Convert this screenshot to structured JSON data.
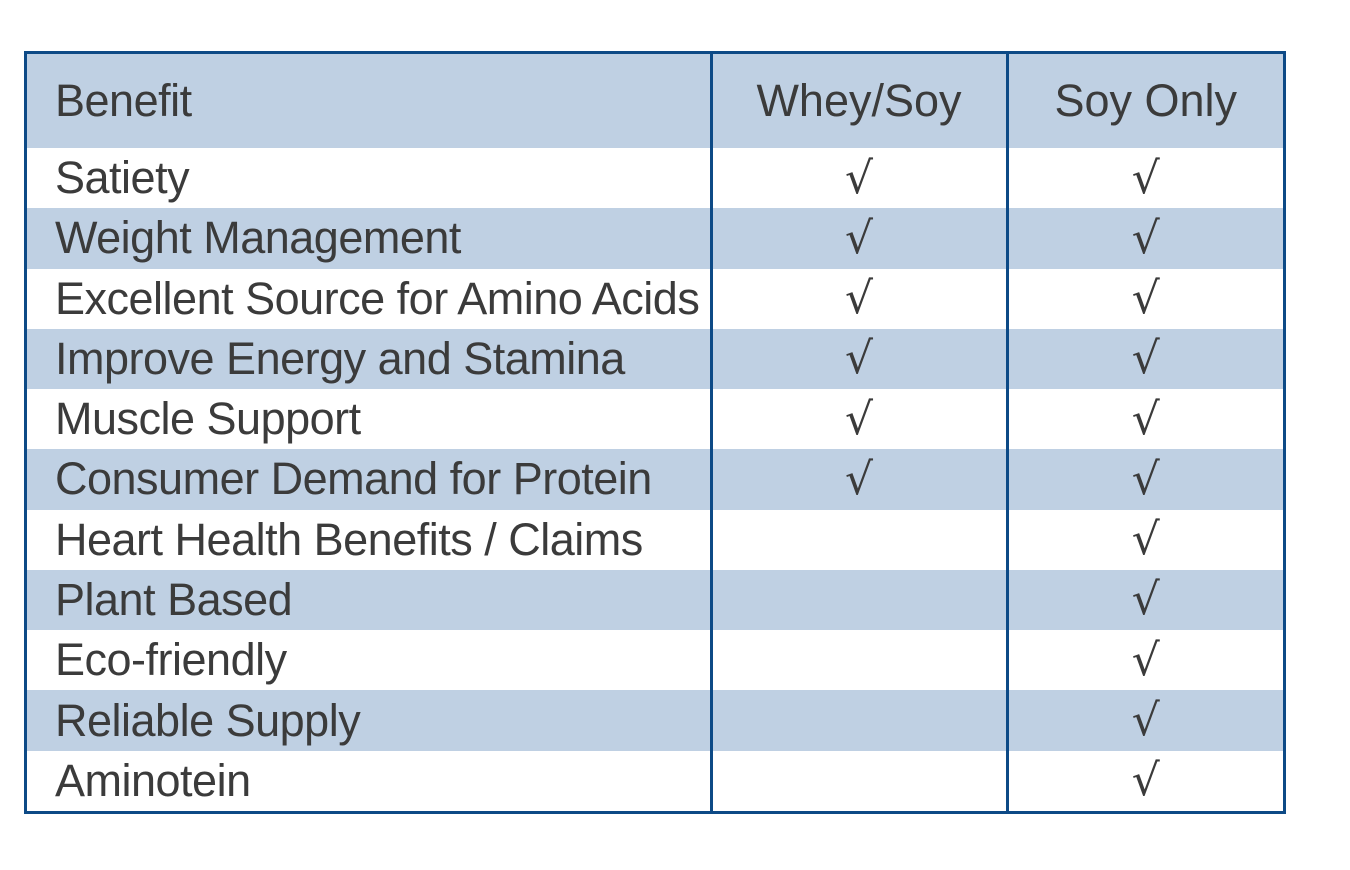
{
  "table": {
    "headers": [
      "Benefit",
      "Whey/Soy",
      "Soy Only"
    ],
    "check_mark": "√",
    "rows": [
      {
        "benefit": "Satiety",
        "whey_soy": "√",
        "soy_only": "√"
      },
      {
        "benefit": "Weight Management",
        "whey_soy": "√",
        "soy_only": "√"
      },
      {
        "benefit": "Excellent Source for Amino Acids",
        "whey_soy": "√",
        "soy_only": "√"
      },
      {
        "benefit": "Improve Energy and Stamina",
        "whey_soy": "√",
        "soy_only": "√"
      },
      {
        "benefit": "Muscle Support",
        "whey_soy": "√",
        "soy_only": "√"
      },
      {
        "benefit": "Consumer Demand for Protein",
        "whey_soy": "√",
        "soy_only": "√"
      },
      {
        "benefit": "Heart Health Benefits / Claims",
        "whey_soy": "",
        "soy_only": "√"
      },
      {
        "benefit": "Plant Based",
        "whey_soy": "",
        "soy_only": "√"
      },
      {
        "benefit": "Eco-friendly",
        "whey_soy": "",
        "soy_only": "√"
      },
      {
        "benefit": "Reliable Supply",
        "whey_soy": "",
        "soy_only": "√"
      },
      {
        "benefit": "Aminotein",
        "whey_soy": "",
        "soy_only": "√"
      }
    ]
  },
  "colors": {
    "border": "#0d4a86",
    "shaded_row": "#bfd0e3",
    "text": "#3b3b3b"
  }
}
